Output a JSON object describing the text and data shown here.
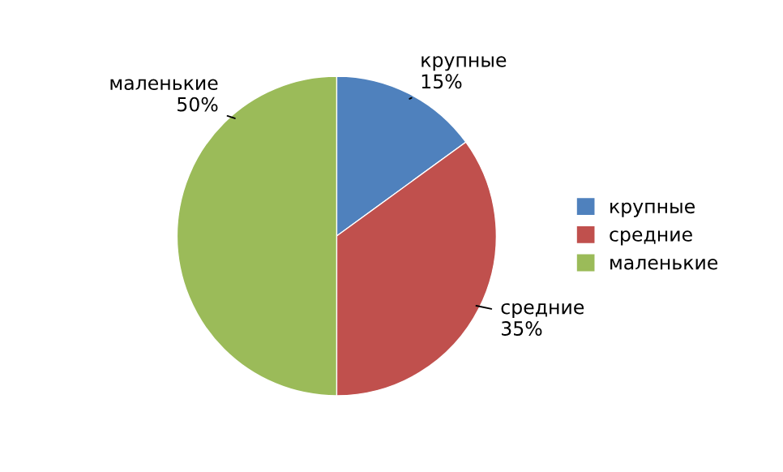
{
  "chart_data": {
    "type": "pie",
    "categories": [
      "крупные",
      "средние",
      "маленькие"
    ],
    "values": [
      15,
      35,
      50
    ],
    "value_labels": [
      "15%",
      "35%",
      "50%"
    ],
    "colors": [
      "#4f81bd",
      "#c0504d",
      "#9bbb59"
    ],
    "legend": "right"
  }
}
